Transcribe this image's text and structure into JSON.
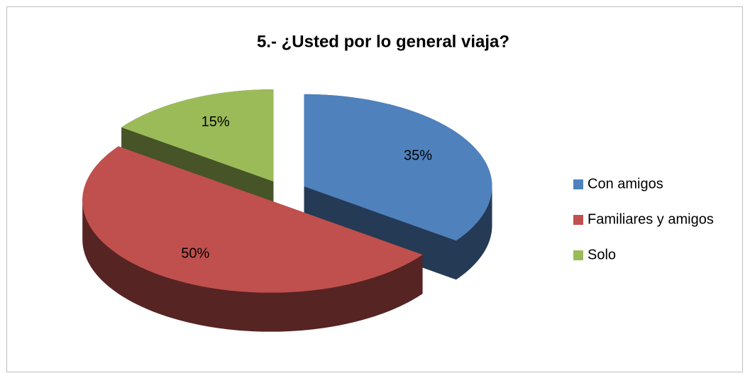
{
  "chart_data": {
    "type": "pie",
    "title": "5.- ¿Usted por lo general viaja?",
    "categories": [
      "Con amigos",
      "Familiares y amigos",
      "Solo"
    ],
    "values": [
      35,
      50,
      15
    ],
    "value_labels": [
      "35%",
      "50%",
      "15%"
    ],
    "colors": [
      "#4f81bd",
      "#c0504d",
      "#9bbb59"
    ],
    "legend": "right",
    "exploded": true,
    "three_d": true
  }
}
